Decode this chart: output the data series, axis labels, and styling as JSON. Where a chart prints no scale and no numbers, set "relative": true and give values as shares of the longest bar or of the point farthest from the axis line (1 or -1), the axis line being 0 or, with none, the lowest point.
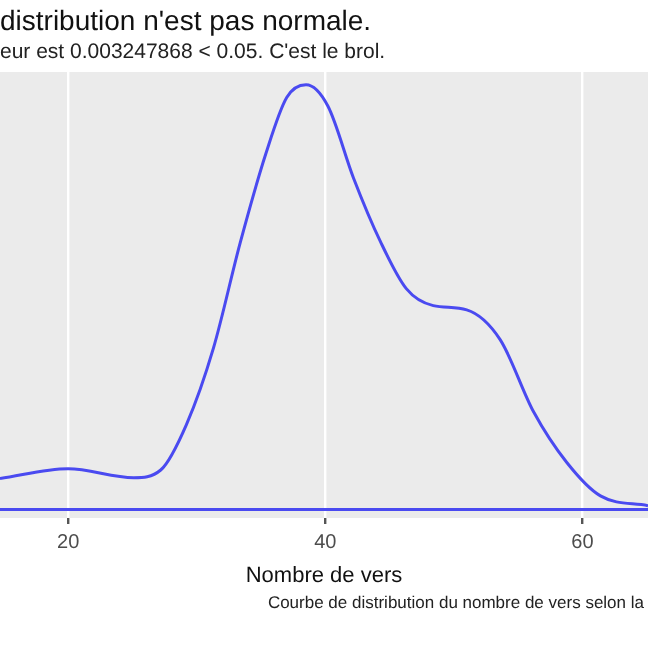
{
  "chart_data": {
    "type": "line",
    "title": "distribution n'est pas normale.",
    "subtitle": "eur est  0.003247868  < 0.05. C'est le brol.",
    "xlabel": "Nombre de vers",
    "annotations": [
      "Courbe de distribution du nombre de vers selon la"
    ],
    "relative": true,
    "xlim": [
      14.7,
      65.1
    ],
    "xticks": [
      20,
      40,
      60
    ],
    "grid": "x",
    "legend": false,
    "x": [
      14.7,
      20,
      25.1,
      27.2,
      29.2,
      31.3,
      33.4,
      35.4,
      37,
      38.5,
      40.2,
      42.2,
      44.3,
      46.3,
      48.4,
      51,
      53.6,
      56.2,
      58.8,
      61.4,
      65.1
    ],
    "series": [
      {
        "color": "#4a4af0",
        "values": [
          0.073,
          0.096,
          0.075,
          0.093,
          0.2,
          0.38,
          0.63,
          0.84,
          0.97,
          1,
          0.95,
          0.78,
          0.63,
          0.52,
          0.48,
          0.47,
          0.4,
          0.23,
          0.11,
          0.032,
          0.009
        ]
      },
      {
        "color": "#4a4af0",
        "x": [
          14.7,
          65.1
        ],
        "values": [
          0,
          0
        ]
      }
    ]
  }
}
